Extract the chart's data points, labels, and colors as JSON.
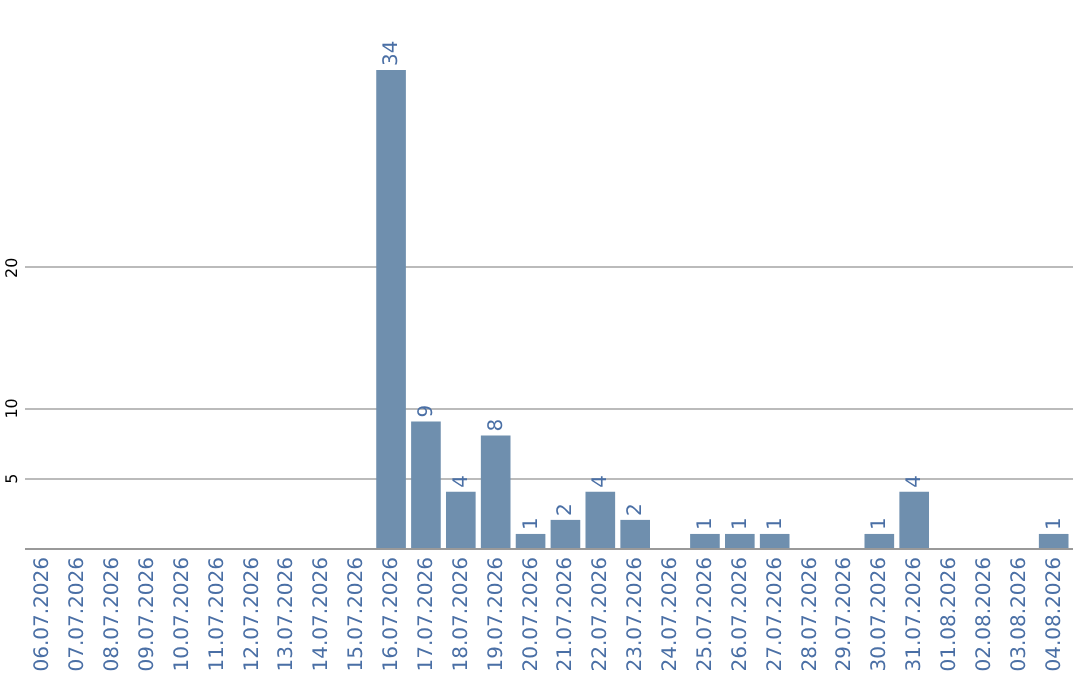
{
  "chart_data": {
    "type": "bar",
    "categories": [
      "06.07.2026",
      "07.07.2026",
      "08.07.2026",
      "09.07.2026",
      "10.07.2026",
      "11.07.2026",
      "12.07.2026",
      "13.07.2026",
      "14.07.2026",
      "15.07.2026",
      "16.07.2026",
      "17.07.2026",
      "18.07.2026",
      "19.07.2026",
      "20.07.2026",
      "21.07.2026",
      "22.07.2026",
      "23.07.2026",
      "24.07.2026",
      "25.07.2026",
      "26.07.2026",
      "27.07.2026",
      "28.07.2026",
      "29.07.2026",
      "30.07.2026",
      "31.07.2026",
      "01.08.2026",
      "02.08.2026",
      "03.08.2026",
      "04.08.2026"
    ],
    "values": [
      0,
      0,
      0,
      0,
      0,
      0,
      0,
      0,
      0,
      0,
      34,
      9,
      4,
      8,
      1,
      2,
      4,
      2,
      0,
      1,
      1,
      1,
      0,
      0,
      1,
      4,
      0,
      0,
      0,
      1
    ],
    "value_labels": [
      null,
      null,
      null,
      null,
      null,
      null,
      null,
      null,
      null,
      null,
      "34",
      "9",
      "4",
      "8",
      "1",
      "2",
      "4",
      "2",
      null,
      "1",
      "1",
      "1",
      null,
      null,
      "1",
      "4",
      null,
      null,
      null,
      "1"
    ],
    "color": "#6f8fae",
    "ylim": [
      0,
      34
    ],
    "yticks": [
      5,
      10,
      20
    ],
    "grid": "y"
  }
}
